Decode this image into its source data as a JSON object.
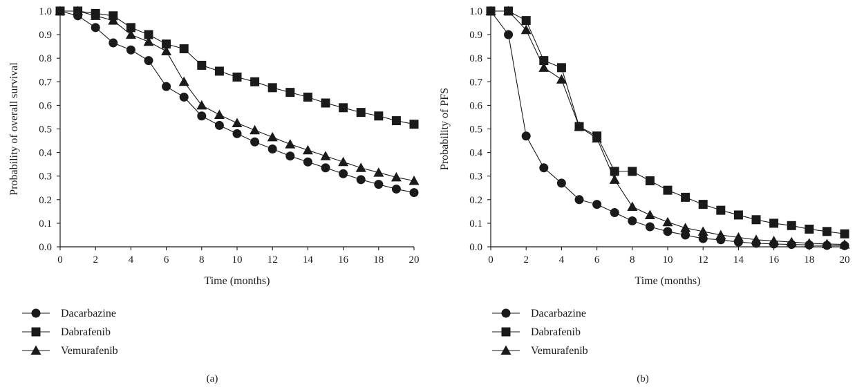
{
  "chart_data": [
    {
      "type": "line",
      "panel_label": "(a)",
      "xlabel": "Time (months)",
      "ylabel": "Probability of overall survival",
      "xlim": [
        0,
        20
      ],
      "ylim": [
        0,
        1
      ],
      "x_ticks": [
        "0",
        "2",
        "4",
        "6",
        "8",
        "10",
        "12",
        "14",
        "16",
        "18",
        "20"
      ],
      "y_ticks": [
        "0.0",
        "0.1",
        "0.2",
        "0.3",
        "0.4",
        "0.5",
        "0.6",
        "0.7",
        "0.8",
        "0.9",
        "1.0"
      ],
      "grid": false,
      "legend_position": "bottom-left",
      "x": [
        0,
        1,
        2,
        3,
        4,
        5,
        6,
        7,
        8,
        9,
        10,
        11,
        12,
        13,
        14,
        15,
        16,
        17,
        18,
        19,
        20
      ],
      "series": [
        {
          "name": "Dacarbazine",
          "marker": "circle",
          "values": [
            1.0,
            0.98,
            0.93,
            0.865,
            0.835,
            0.79,
            0.68,
            0.635,
            0.555,
            0.515,
            0.48,
            0.445,
            0.415,
            0.385,
            0.36,
            0.335,
            0.31,
            0.285,
            0.265,
            0.245,
            0.23
          ]
        },
        {
          "name": "Dabrafenib",
          "marker": "square",
          "values": [
            1.0,
            1.0,
            0.99,
            0.98,
            0.93,
            0.9,
            0.86,
            0.84,
            0.77,
            0.745,
            0.72,
            0.7,
            0.675,
            0.655,
            0.635,
            0.61,
            0.59,
            0.57,
            0.555,
            0.535,
            0.52
          ]
        },
        {
          "name": "Vemurafenib",
          "marker": "triangle",
          "values": [
            1.0,
            1.0,
            0.98,
            0.96,
            0.9,
            0.87,
            0.83,
            0.7,
            0.6,
            0.56,
            0.525,
            0.495,
            0.465,
            0.435,
            0.41,
            0.385,
            0.36,
            0.335,
            0.315,
            0.295,
            0.28
          ]
        }
      ]
    },
    {
      "type": "line",
      "panel_label": "(b)",
      "xlabel": "Time (months)",
      "ylabel": "Probability of PFS",
      "xlim": [
        0,
        20
      ],
      "ylim": [
        0,
        1
      ],
      "x_ticks": [
        "0",
        "2",
        "4",
        "6",
        "8",
        "10",
        "12",
        "14",
        "16",
        "18",
        "20"
      ],
      "y_ticks": [
        "0.0",
        "0.1",
        "0.2",
        "0.3",
        "0.4",
        "0.5",
        "0.6",
        "0.7",
        "0.8",
        "0.9",
        "1.0"
      ],
      "grid": false,
      "legend_position": "bottom-left",
      "x": [
        0,
        1,
        2,
        3,
        4,
        5,
        6,
        7,
        8,
        9,
        10,
        11,
        12,
        13,
        14,
        15,
        16,
        17,
        18,
        19,
        20
      ],
      "series": [
        {
          "name": "Dacarbazine",
          "marker": "circle",
          "values": [
            1.0,
            0.9,
            0.47,
            0.335,
            0.27,
            0.2,
            0.18,
            0.145,
            0.11,
            0.085,
            0.065,
            0.05,
            0.035,
            0.03,
            0.02,
            0.015,
            0.012,
            0.01,
            0.008,
            0.006,
            0.005
          ]
        },
        {
          "name": "Dabrafenib",
          "marker": "square",
          "values": [
            1.0,
            1.0,
            0.96,
            0.79,
            0.76,
            0.51,
            0.47,
            0.32,
            0.32,
            0.28,
            0.24,
            0.21,
            0.18,
            0.155,
            0.135,
            0.115,
            0.1,
            0.09,
            0.075,
            0.065,
            0.055
          ]
        },
        {
          "name": "Vemurafenib",
          "marker": "triangle",
          "values": [
            1.0,
            1.0,
            0.92,
            0.76,
            0.71,
            0.51,
            0.46,
            0.285,
            0.17,
            0.135,
            0.105,
            0.08,
            0.065,
            0.05,
            0.04,
            0.03,
            0.025,
            0.02,
            0.015,
            0.012,
            0.01
          ]
        }
      ]
    }
  ]
}
